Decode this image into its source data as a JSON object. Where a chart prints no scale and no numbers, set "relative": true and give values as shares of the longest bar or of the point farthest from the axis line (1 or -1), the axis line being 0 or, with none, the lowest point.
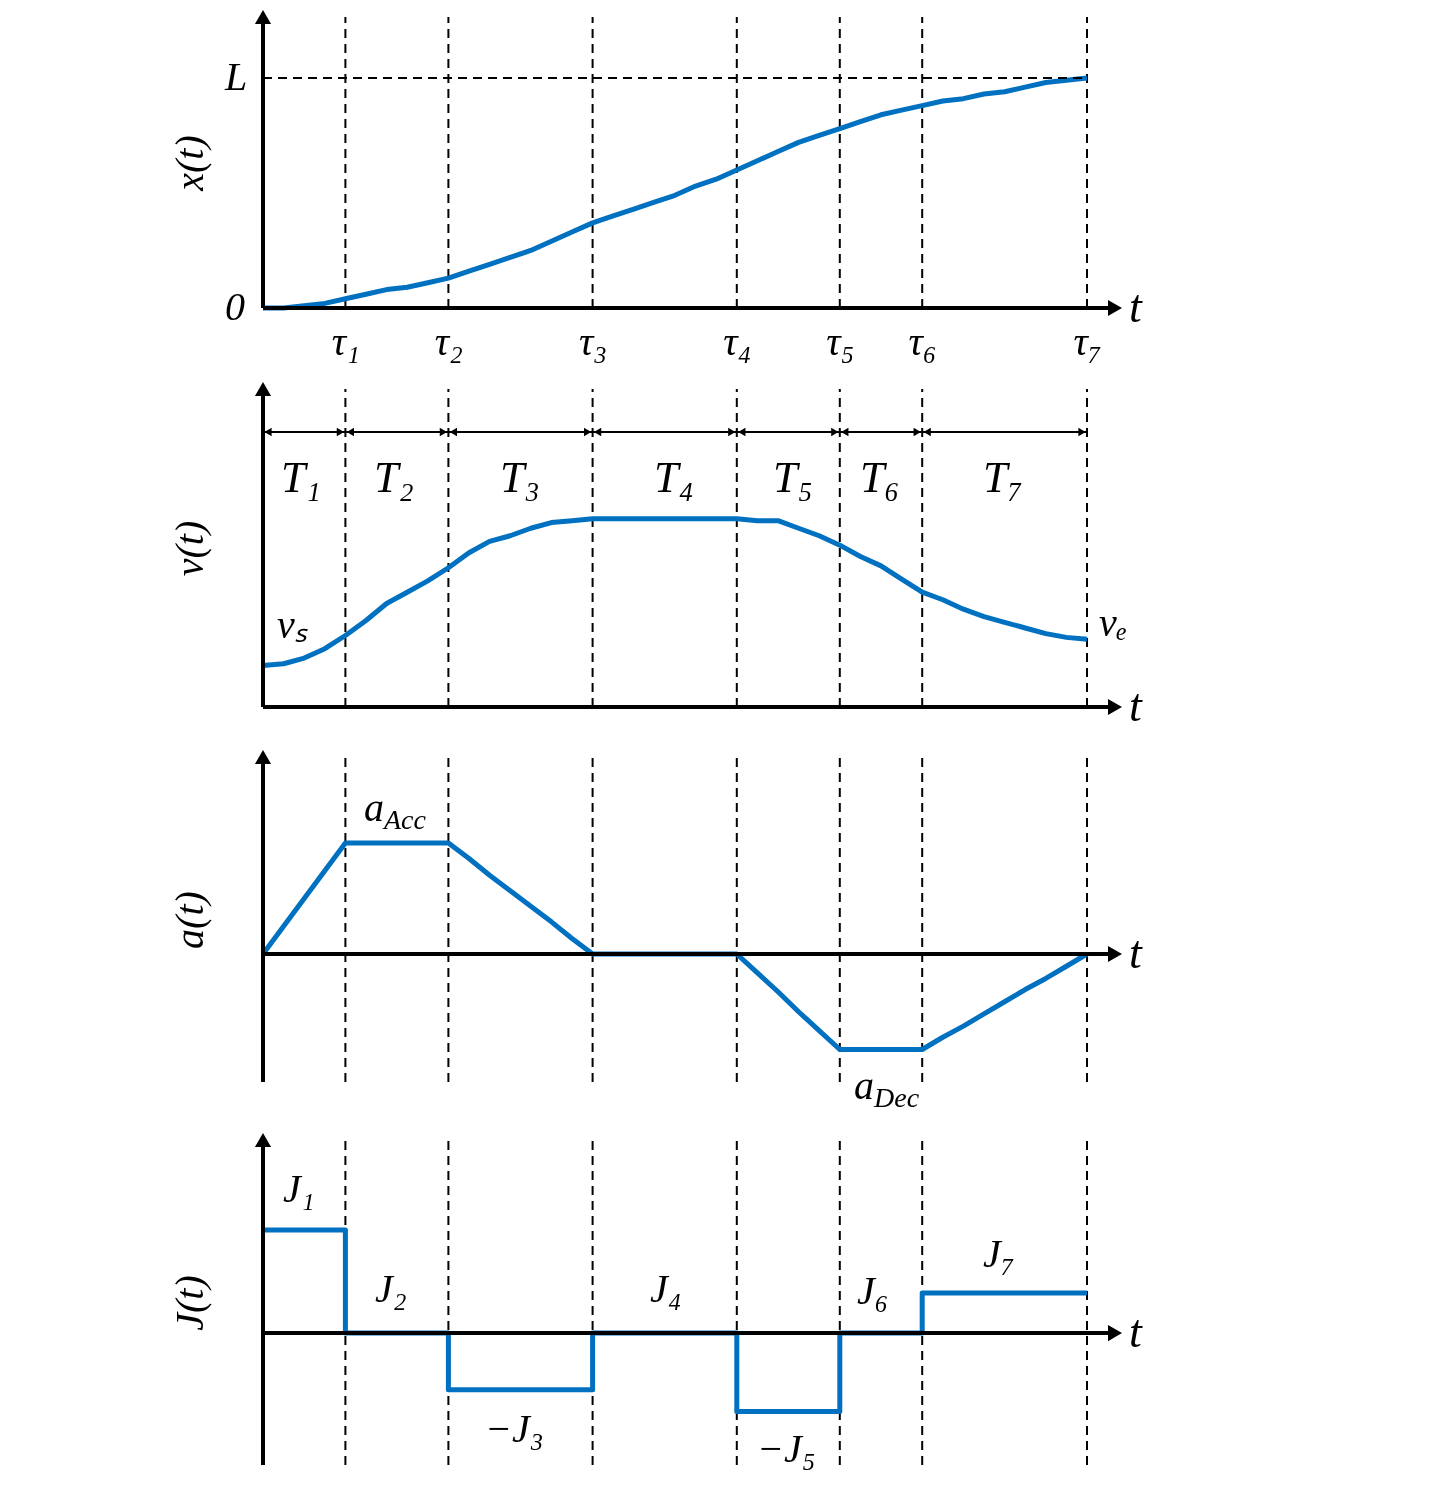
{
  "chart_data": [
    {
      "type": "line",
      "xlabel": "t",
      "ylabel": "x(t)",
      "relative": true,
      "tick_labels": "x",
      "grid": "x",
      "categories": [
        null,
        null,
        null,
        null,
        "τ₁",
        null,
        null,
        null,
        null,
        "τ₂",
        null,
        null,
        null,
        null,
        null,
        null,
        "τ₃",
        null,
        null,
        null,
        null,
        null,
        null,
        "τ₄",
        null,
        null,
        null,
        null,
        "τ₅",
        null,
        null,
        null,
        "τ₆",
        null,
        null,
        null,
        null,
        null,
        null,
        null,
        "τ₇"
      ],
      "series": [
        {
          "color": "#0070c0",
          "values": [
            0,
            0,
            0.01,
            0.02,
            0.04,
            0.06,
            0.08,
            0.09,
            0.11,
            0.13,
            0.16,
            0.19,
            0.22,
            0.25,
            0.29,
            0.33,
            0.37,
            0.4,
            0.43,
            0.46,
            0.49,
            0.53,
            0.56,
            0.6,
            0.64,
            0.68,
            0.72,
            0.75,
            0.78,
            0.81,
            0.84,
            0.86,
            0.88,
            0.9,
            0.91,
            0.93,
            0.94,
            0.96,
            0.98,
            0.99,
            1
          ]
        },
        {
          "color": "#000000",
          "line_style": "dashed",
          "values": [
            1,
            1,
            1,
            1,
            1,
            1,
            1,
            1,
            1,
            1,
            1,
            1,
            1,
            1,
            1,
            1,
            1,
            1,
            1,
            1,
            1,
            1,
            1,
            1,
            1,
            1,
            1,
            1,
            1,
            1,
            1,
            1,
            1,
            1,
            1,
            1,
            1,
            1,
            1,
            1,
            1
          ]
        }
      ],
      "annotations": [
        "L",
        "0"
      ]
    },
    {
      "type": "line",
      "xlabel": "t",
      "ylabel": "v(t)",
      "relative": true,
      "tick_labels": false,
      "grid": "x",
      "categories": [
        null,
        null,
        null,
        null,
        null,
        null,
        null,
        null,
        null,
        null,
        null,
        null,
        null,
        null,
        null,
        null,
        null,
        null,
        null,
        null,
        null,
        null,
        null,
        null,
        null,
        null,
        null,
        null,
        null,
        null,
        null,
        null,
        null,
        null,
        null,
        null,
        null,
        null,
        null,
        null,
        null
      ],
      "series": [
        {
          "color": "#0070c0",
          "values": [
            0.22,
            0.23,
            0.26,
            0.31,
            0.38,
            0.46,
            0.55,
            0.61,
            0.67,
            0.74,
            0.82,
            0.88,
            0.91,
            0.95,
            0.98,
            0.99,
            1,
            1,
            1,
            1,
            1,
            1,
            1,
            1,
            0.99,
            0.99,
            0.95,
            0.91,
            0.86,
            0.8,
            0.75,
            0.68,
            0.61,
            0.57,
            0.52,
            0.48,
            0.45,
            0.42,
            0.39,
            0.37,
            0.36
          ]
        }
      ],
      "annotations": [
        "T₁",
        "T₂",
        "T₃",
        "T₄",
        "T₅",
        "T₆",
        "T₇",
        "vₛ",
        "vₑ"
      ]
    },
    {
      "type": "line",
      "xlabel": "t",
      "ylabel": "a(t)",
      "relative": true,
      "tick_labels": false,
      "grid": "x",
      "categories": [
        null,
        null,
        null,
        null,
        null,
        null,
        null,
        null,
        null,
        null,
        null,
        null,
        null,
        null,
        null,
        null,
        null,
        null,
        null,
        null,
        null,
        null,
        null,
        null,
        null,
        null,
        null,
        null,
        null,
        null,
        null,
        null,
        null,
        null,
        null,
        null,
        null,
        null,
        null,
        null,
        null
      ],
      "series": [
        {
          "color": "#0070c0",
          "values": [
            0,
            0.25,
            0.5,
            0.75,
            1,
            1,
            1,
            1,
            1,
            1,
            0.86,
            0.71,
            0.57,
            0.43,
            0.29,
            0.14,
            0,
            0,
            0,
            0,
            0,
            0,
            0,
            0,
            -0.17,
            -0.34,
            -0.52,
            -0.69,
            -0.86,
            -0.86,
            -0.86,
            -0.86,
            -0.86,
            -0.75,
            -0.65,
            -0.54,
            -0.43,
            -0.32,
            -0.22,
            -0.11,
            0
          ]
        }
      ],
      "annotations": [
        "a$_{Acc}$",
        "a$_{Dec}$"
      ]
    },
    {
      "type": "step",
      "xlabel": "t",
      "ylabel": "J(t)",
      "relative": true,
      "tick_labels": false,
      "grid": "x",
      "categories": [
        null,
        null,
        null,
        null,
        null,
        null,
        null,
        null,
        null,
        null,
        null,
        null,
        null,
        null,
        null,
        null,
        null,
        null,
        null,
        null,
        null,
        null,
        null,
        null,
        null,
        null,
        null,
        null,
        null,
        null,
        null,
        null,
        null,
        null,
        null,
        null,
        null,
        null,
        null,
        null,
        null
      ],
      "series": [
        {
          "color": "#0070c0",
          "values": [
            1,
            1,
            1,
            1,
            0,
            0,
            0,
            0,
            0,
            -0.55,
            -0.55,
            -0.55,
            -0.55,
            -0.55,
            -0.55,
            -0.55,
            0,
            0,
            0,
            0,
            0,
            0,
            0,
            -0.76,
            -0.76,
            -0.76,
            -0.76,
            -0.76,
            0,
            0,
            0,
            0,
            0.39,
            0.39,
            0.39,
            0.39,
            0.39,
            0.39,
            0.39,
            0.39,
            0.39
          ]
        }
      ],
      "annotations": [
        "J₁",
        "J₂",
        "−J₃",
        "J₄",
        "−J₅",
        "J₆",
        "J₇"
      ]
    }
  ]
}
